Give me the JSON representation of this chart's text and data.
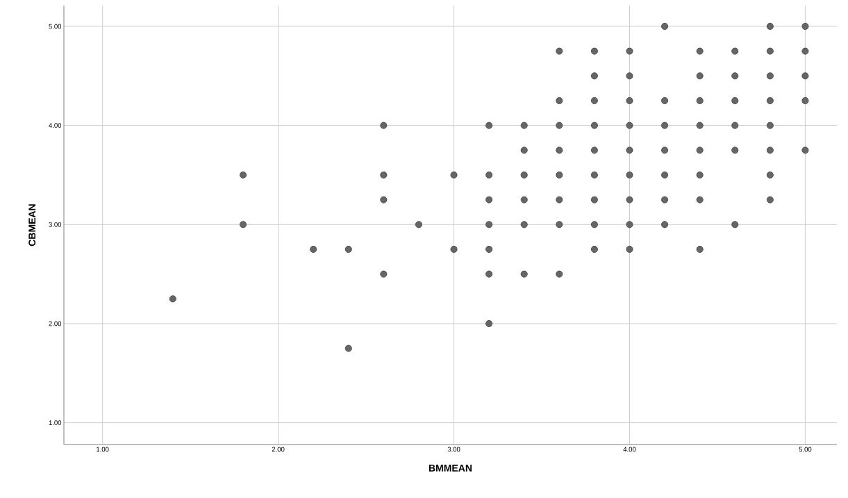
{
  "chart_data": {
    "type": "scatter",
    "xlabel": "BMMEAN",
    "ylabel": "CBMEAN",
    "color": "#666666",
    "marker": "circle",
    "grid": true,
    "x": [
      1.4,
      1.8,
      1.8,
      2.2,
      2.4,
      2.4,
      2.6,
      2.6,
      2.6,
      2.6,
      2.8,
      3.0,
      3.0,
      3.2,
      3.2,
      3.2,
      3.2,
      3.2,
      3.2,
      3.2,
      3.4,
      3.4,
      3.4,
      3.4,
      3.4,
      3.4,
      3.6,
      3.6,
      3.6,
      3.6,
      3.6,
      3.6,
      3.6,
      3.6,
      3.8,
      3.8,
      3.8,
      3.8,
      3.8,
      3.8,
      3.8,
      3.8,
      3.8,
      4.0,
      4.0,
      4.0,
      4.0,
      4.0,
      4.0,
      4.0,
      4.0,
      4.0,
      4.2,
      4.2,
      4.2,
      4.2,
      4.2,
      4.2,
      4.2,
      4.4,
      4.4,
      4.4,
      4.4,
      4.4,
      4.4,
      4.4,
      4.4,
      4.6,
      4.6,
      4.6,
      4.6,
      4.6,
      4.6,
      4.8,
      4.8,
      4.8,
      4.8,
      4.8,
      4.8,
      4.8,
      4.8,
      5.0,
      5.0,
      5.0,
      5.0,
      5.0
    ],
    "values": [
      2.25,
      3.5,
      3.0,
      2.75,
      2.75,
      1.75,
      4.0,
      3.5,
      3.25,
      2.5,
      3.0,
      3.5,
      2.75,
      4.0,
      3.5,
      3.25,
      3.0,
      2.75,
      2.5,
      2.0,
      4.0,
      3.75,
      3.5,
      3.25,
      3.0,
      2.5,
      4.75,
      4.25,
      4.0,
      3.75,
      3.5,
      3.25,
      3.0,
      2.5,
      4.75,
      4.5,
      4.25,
      4.0,
      3.75,
      3.5,
      3.25,
      3.0,
      2.75,
      4.75,
      4.5,
      4.25,
      4.0,
      3.75,
      3.5,
      3.25,
      3.0,
      2.75,
      5.0,
      4.25,
      4.0,
      3.75,
      3.5,
      3.25,
      3.0,
      4.75,
      4.5,
      4.25,
      4.0,
      3.75,
      3.5,
      3.25,
      2.75,
      4.75,
      4.5,
      4.25,
      4.0,
      3.75,
      3.0,
      5.0,
      4.75,
      4.5,
      4.25,
      4.0,
      3.75,
      3.5,
      3.25,
      5.0,
      4.75,
      4.5,
      4.25,
      3.75
    ],
    "xlim": [
      0.78,
      5.18
    ],
    "ylim": [
      0.78,
      5.21
    ],
    "xticks": [
      {
        "value": 1,
        "label": "1.00"
      },
      {
        "value": 2,
        "label": "2.00"
      },
      {
        "value": 3,
        "label": "3.00"
      },
      {
        "value": 4,
        "label": "4.00"
      },
      {
        "value": 5,
        "label": "5.00"
      }
    ],
    "yticks": [
      {
        "value": 1,
        "label": "1.00"
      },
      {
        "value": 2,
        "label": "2.00"
      },
      {
        "value": 3,
        "label": "3.00"
      },
      {
        "value": 4,
        "label": "4.00"
      },
      {
        "value": 5,
        "label": "5.00"
      }
    ]
  }
}
